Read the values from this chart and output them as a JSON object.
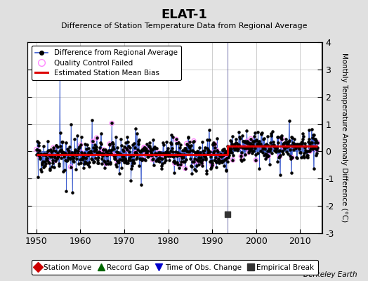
{
  "title": "ELAT-1",
  "subtitle": "Difference of Station Temperature Data from Regional Average",
  "ylabel": "Monthly Temperature Anomaly Difference (°C)",
  "xlabel_years": [
    1950,
    1960,
    1970,
    1980,
    1990,
    2000,
    2010
  ],
  "xlim": [
    1948,
    2015
  ],
  "ylim": [
    -3,
    4
  ],
  "yticks": [
    -3,
    -2,
    -1,
    0,
    1,
    2,
    3,
    4
  ],
  "background_color": "#e0e0e0",
  "plot_bg_color": "#ffffff",
  "grid_color": "#bbbbbb",
  "line_color": "#3355cc",
  "bias_color": "#dd0000",
  "qc_color": "#ff88ff",
  "seed": 42,
  "n_months": 780,
  "start_year": 1950.0,
  "end_year": 2014.0,
  "break_year": 1993.5,
  "bias_before": -0.12,
  "bias_after": 0.18,
  "empirical_break_year": 1993.5,
  "watermark": "Berkeley Earth",
  "footnote_items": [
    {
      "marker": "D",
      "color": "#cc0000",
      "label": "Station Move"
    },
    {
      "marker": "^",
      "color": "#006600",
      "label": "Record Gap"
    },
    {
      "marker": "v",
      "color": "#0000cc",
      "label": "Time of Obs. Change"
    },
    {
      "marker": "s",
      "color": "#333333",
      "label": "Empirical Break"
    }
  ]
}
